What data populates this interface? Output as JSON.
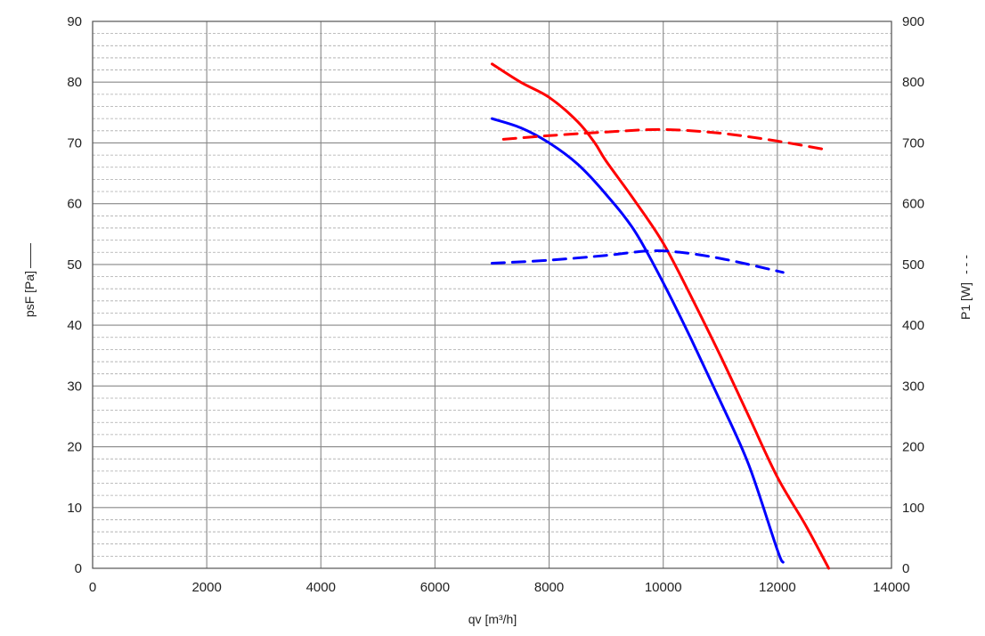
{
  "chart_data": {
    "type": "line",
    "xlabel": "qv [m³/h]",
    "ylabel_left": "psF [Pa]",
    "ylabel_left_legend": "——",
    "ylabel_right": "P1 [W]",
    "ylabel_right_legend": "- - -",
    "xlim": [
      0,
      14000
    ],
    "ylim_left": [
      0,
      90
    ],
    "ylim_right": [
      0,
      900
    ],
    "x_ticks": [
      "0",
      "2000",
      "4000",
      "6000",
      "8000",
      "10000",
      "12000",
      "14000"
    ],
    "y_left_ticks": [
      "0",
      "10",
      "20",
      "30",
      "40",
      "50",
      "60",
      "70",
      "80",
      "90"
    ],
    "y_right_ticks": [
      "0",
      "100",
      "200",
      "300",
      "400",
      "500",
      "600",
      "700",
      "800",
      "900"
    ],
    "grid": true,
    "series": [
      {
        "color": "#ff0000",
        "axis": "left",
        "style": "solid",
        "points": [
          [
            7000,
            83
          ],
          [
            7500,
            80
          ],
          [
            8000,
            77.5
          ],
          [
            8500,
            73.5
          ],
          [
            8800,
            70
          ],
          [
            9000,
            67
          ],
          [
            9500,
            60.5
          ],
          [
            10000,
            53.5
          ],
          [
            10500,
            44.5
          ],
          [
            11000,
            35
          ],
          [
            11500,
            25
          ],
          [
            12000,
            15
          ],
          [
            12500,
            7
          ],
          [
            12900,
            0
          ]
        ]
      },
      {
        "color": "#0000ff",
        "axis": "left",
        "style": "solid",
        "points": [
          [
            7000,
            74
          ],
          [
            7500,
            72.5
          ],
          [
            8000,
            70
          ],
          [
            8500,
            66.5
          ],
          [
            9000,
            61.5
          ],
          [
            9500,
            55.5
          ],
          [
            10000,
            47
          ],
          [
            10500,
            37.5
          ],
          [
            11000,
            27.5
          ],
          [
            11500,
            17
          ],
          [
            12000,
            3
          ],
          [
            12100,
            1
          ]
        ]
      },
      {
        "color": "#ff0000",
        "axis": "right",
        "style": "dashed",
        "points": [
          [
            7200,
            706
          ],
          [
            8000,
            712
          ],
          [
            9000,
            718
          ],
          [
            10000,
            722
          ],
          [
            11000,
            716
          ],
          [
            12000,
            703
          ],
          [
            12900,
            688
          ]
        ]
      },
      {
        "color": "#0000ff",
        "axis": "right",
        "style": "dashed",
        "points": [
          [
            7000,
            502
          ],
          [
            8000,
            507
          ],
          [
            9000,
            515
          ],
          [
            9700,
            522
          ],
          [
            10200,
            521
          ],
          [
            11000,
            510
          ],
          [
            12100,
            487
          ]
        ]
      }
    ]
  }
}
